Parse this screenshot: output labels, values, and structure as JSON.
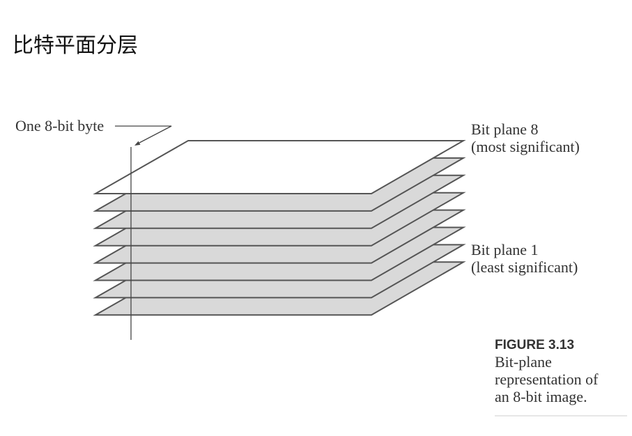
{
  "title": "比特平面分层",
  "figure": {
    "byte_label": "One 8-bit byte",
    "top_plane_label": [
      "Bit plane 8",
      "(most significant)"
    ],
    "bottom_plane_label": [
      "Bit plane 1",
      "(least significant)"
    ],
    "caption": {
      "number": "FIGURE 3.13",
      "lines": [
        "Bit-plane",
        "representation of",
        "an 8-bit image."
      ]
    }
  },
  "colors": {
    "top_plane_fill": "#ffffff",
    "plane_fill": "#d9d9d9",
    "plane_stroke": "#555555",
    "leader_stroke": "#444444",
    "caption_rule": "#cccccc"
  }
}
